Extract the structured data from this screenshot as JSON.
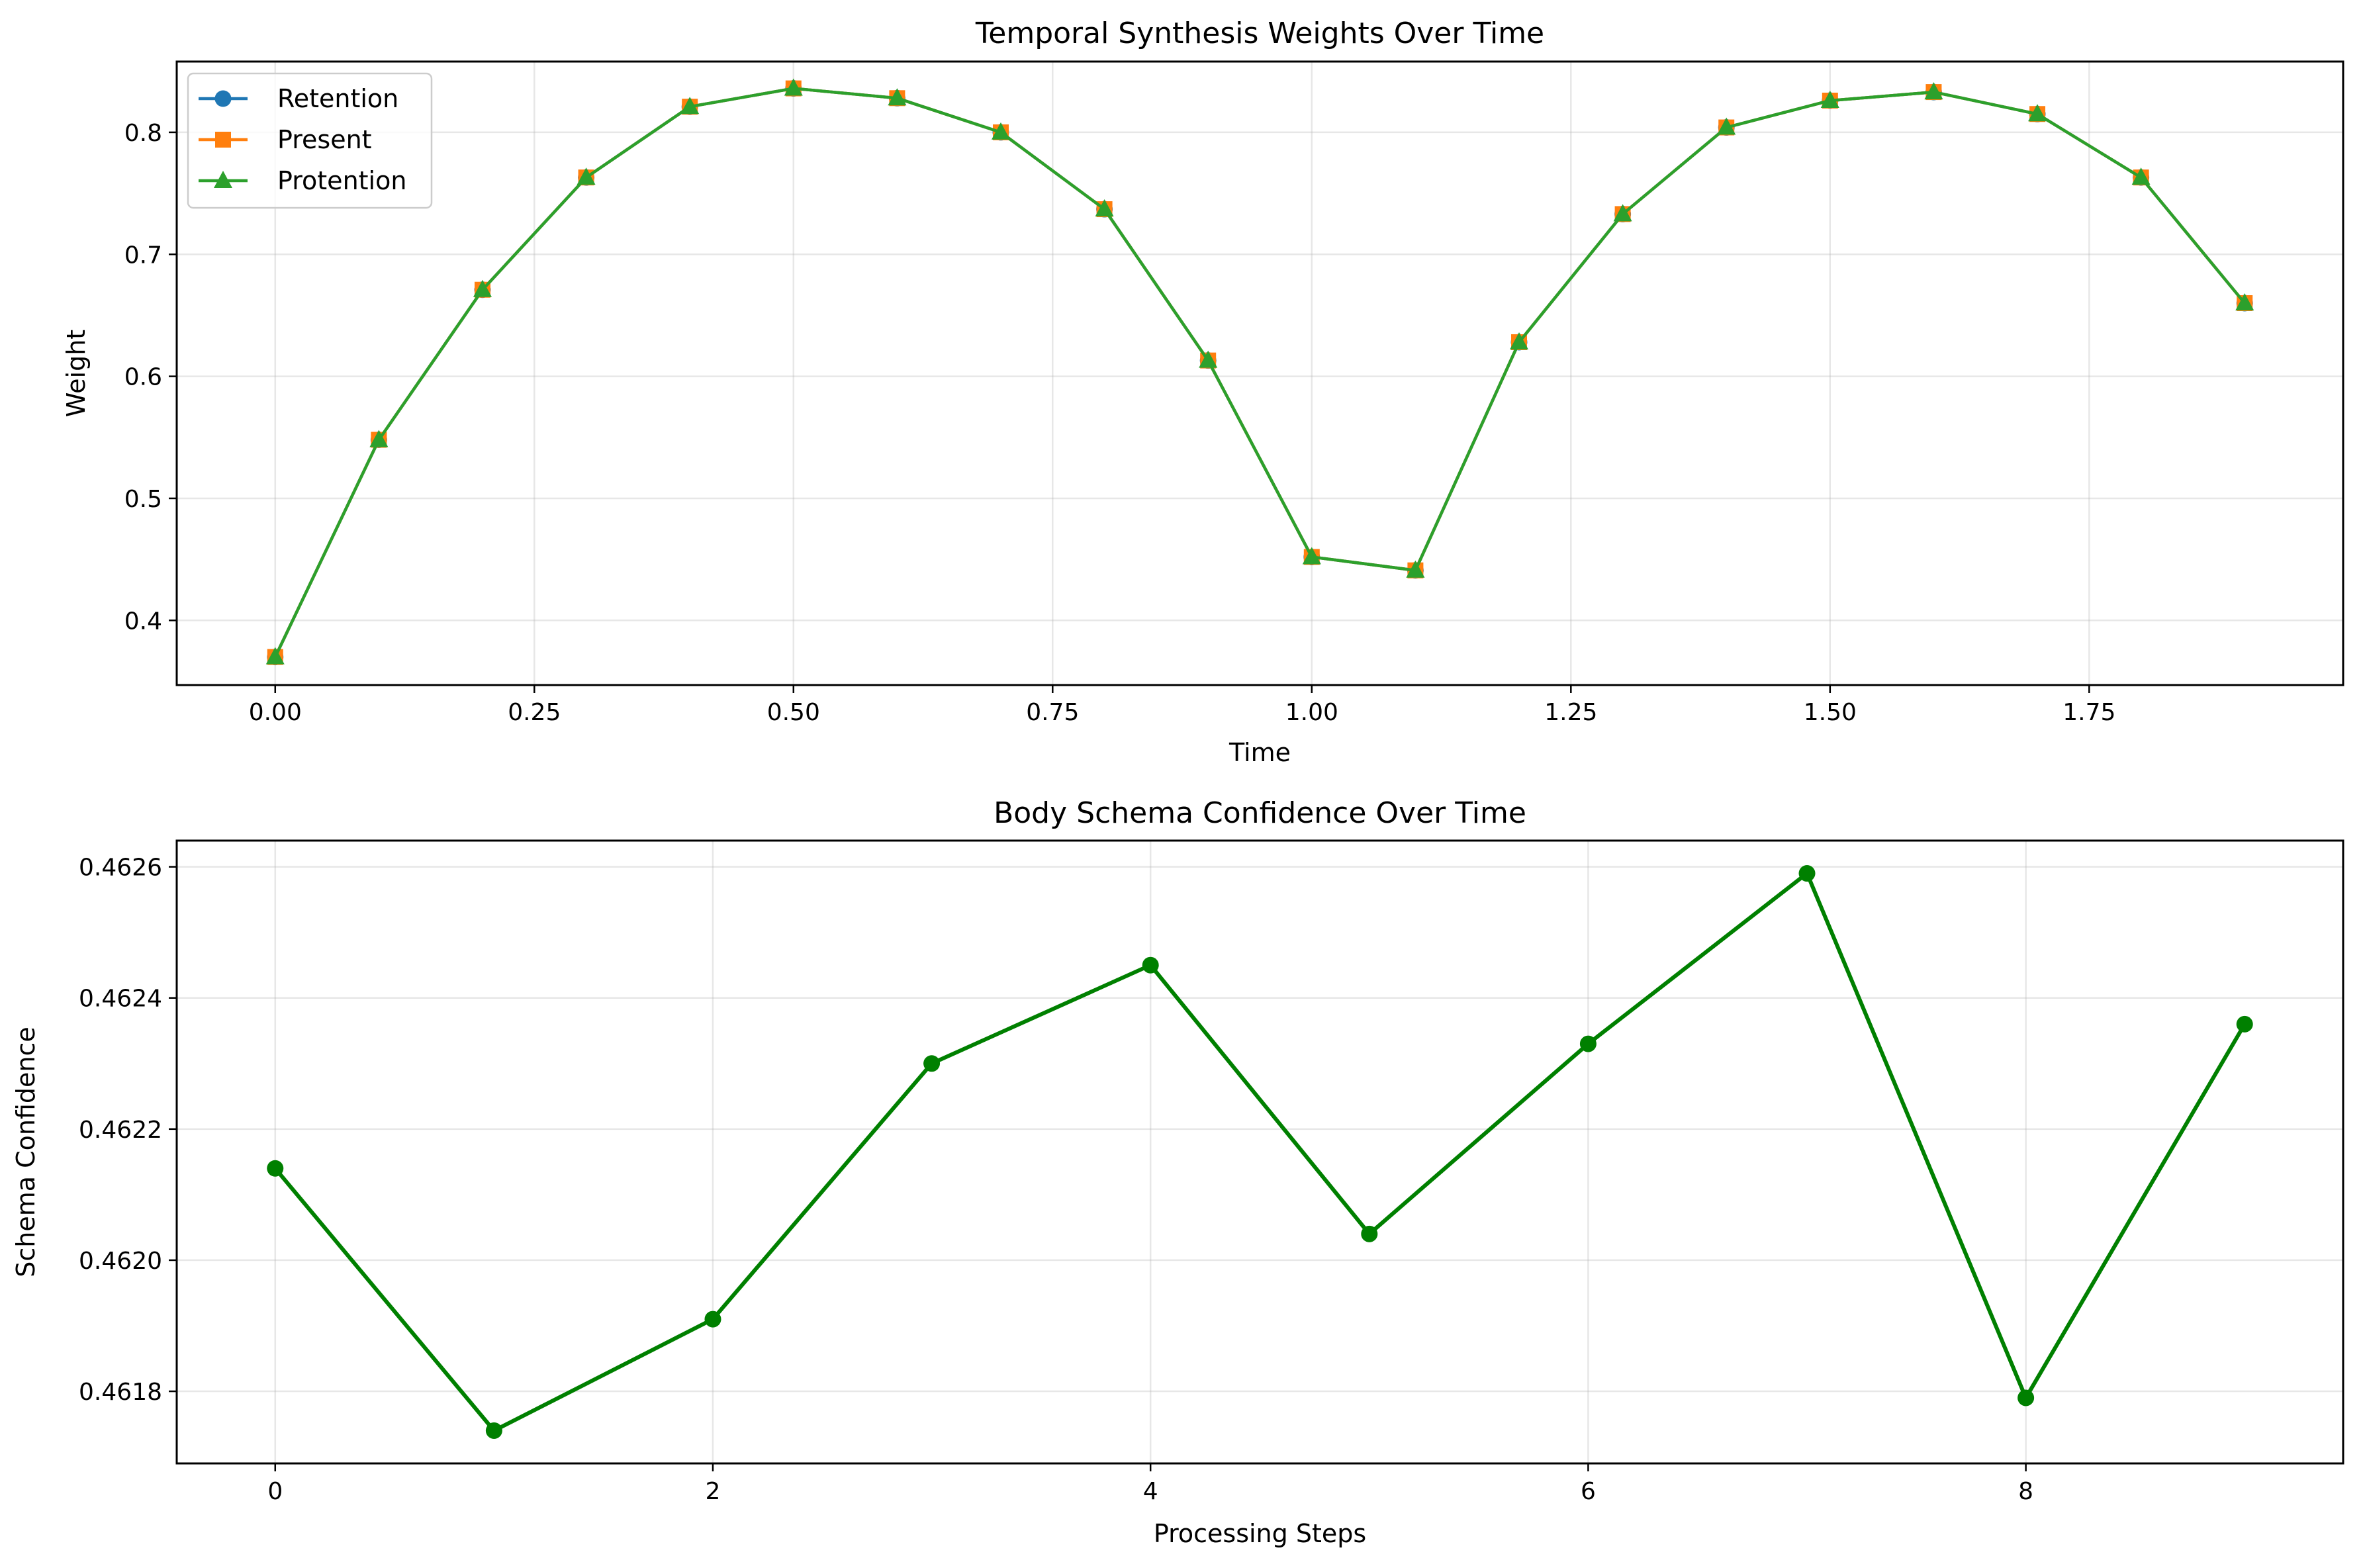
{
  "chart_data": [
    {
      "type": "line",
      "title": "Temporal Synthesis Weights Over Time",
      "xlabel": "Time",
      "ylabel": "Weight",
      "xlim": [
        -0.095,
        1.995
      ],
      "ylim": [
        0.347,
        0.858
      ],
      "xticks": [
        0.0,
        0.25,
        0.5,
        0.75,
        1.0,
        1.25,
        1.5,
        1.75
      ],
      "xtick_labels": [
        "0.00",
        "0.25",
        "0.50",
        "0.75",
        "1.00",
        "1.25",
        "1.50",
        "1.75"
      ],
      "yticks": [
        0.4,
        0.5,
        0.6,
        0.7,
        0.8
      ],
      "ytick_labels": [
        "0.4",
        "0.5",
        "0.6",
        "0.7",
        "0.8"
      ],
      "grid": true,
      "legend_position": "upper-left",
      "x": [
        0.0,
        0.1,
        0.2,
        0.3,
        0.4,
        0.5,
        0.6,
        0.7,
        0.8,
        0.9,
        1.0,
        1.1,
        1.2,
        1.3,
        1.4,
        1.5,
        1.6,
        1.7,
        1.8,
        1.9
      ],
      "series": [
        {
          "name": "Retention",
          "color": "#1f77b4",
          "marker": "circle",
          "values": [
            0.37,
            0.548,
            0.671,
            0.763,
            0.821,
            0.836,
            0.828,
            0.8,
            0.737,
            0.613,
            0.452,
            0.441,
            0.628,
            0.733,
            0.804,
            0.826,
            0.833,
            0.815,
            0.763,
            0.66
          ]
        },
        {
          "name": "Present",
          "color": "#ff7f0e",
          "marker": "square",
          "values": [
            0.37,
            0.548,
            0.671,
            0.763,
            0.821,
            0.836,
            0.828,
            0.8,
            0.737,
            0.613,
            0.452,
            0.441,
            0.628,
            0.733,
            0.804,
            0.826,
            0.833,
            0.815,
            0.763,
            0.66
          ]
        },
        {
          "name": "Protention",
          "color": "#2ca02c",
          "marker": "triangle",
          "values": [
            0.37,
            0.548,
            0.671,
            0.763,
            0.821,
            0.836,
            0.828,
            0.8,
            0.737,
            0.613,
            0.452,
            0.441,
            0.628,
            0.733,
            0.804,
            0.826,
            0.833,
            0.815,
            0.763,
            0.66
          ]
        }
      ]
    },
    {
      "type": "line",
      "title": "Body Schema Confidence Over Time",
      "xlabel": "Processing Steps",
      "ylabel": "Schema Confidence",
      "xlim": [
        -0.45,
        9.45
      ],
      "ylim": [
        0.46169,
        0.46264
      ],
      "xticks": [
        0,
        2,
        4,
        6,
        8
      ],
      "xtick_labels": [
        "0",
        "2",
        "4",
        "6",
        "8"
      ],
      "yticks": [
        0.4618,
        0.462,
        0.4622,
        0.4624,
        0.4626
      ],
      "ytick_labels": [
        "0.4618",
        "0.4620",
        "0.4622",
        "0.4624",
        "0.4626"
      ],
      "grid": true,
      "x": [
        0,
        1,
        2,
        3,
        4,
        5,
        6,
        7,
        8,
        9
      ],
      "series": [
        {
          "color": "#008000",
          "marker": "circle",
          "values": [
            0.46214,
            0.46174,
            0.46191,
            0.4623,
            0.46245,
            0.46204,
            0.46233,
            0.46259,
            0.46179,
            0.46236
          ]
        }
      ]
    }
  ]
}
